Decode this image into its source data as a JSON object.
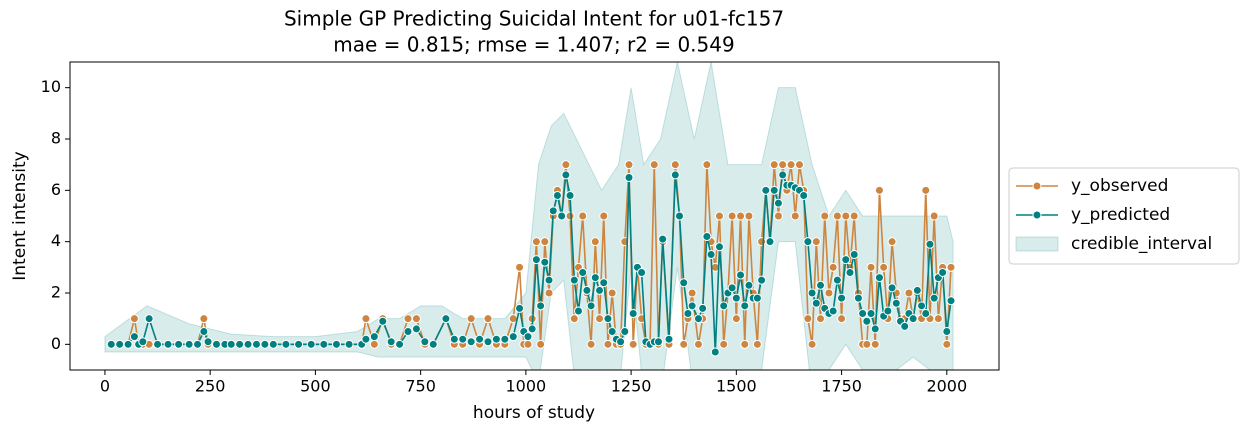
{
  "chart_data": {
    "type": "line",
    "title": "Simple GP Predicting Suicidal Intent for u01-fc157",
    "subtitle": "mae = 0.815; rmse = 1.407; r2 = 0.549",
    "xlabel": "hours of study",
    "ylabel": "Intent intensity",
    "xlim": [
      -83,
      2124
    ],
    "ylim": [
      -1,
      11
    ],
    "xticks": [
      0,
      250,
      500,
      750,
      1000,
      1250,
      1500,
      1750,
      2000
    ],
    "yticks": [
      0,
      2,
      4,
      6,
      8,
      10
    ],
    "legend": "right",
    "x": [
      15,
      35,
      55,
      70,
      80,
      90,
      105,
      125,
      150,
      175,
      200,
      220,
      235,
      245,
      265,
      285,
      300,
      320,
      340,
      360,
      380,
      400,
      430,
      460,
      490,
      520,
      550,
      580,
      610,
      620,
      640,
      660,
      680,
      700,
      720,
      740,
      760,
      780,
      810,
      830,
      850,
      870,
      890,
      910,
      930,
      950,
      970,
      985,
      995,
      1005,
      1015,
      1025,
      1035,
      1045,
      1055,
      1065,
      1075,
      1085,
      1095,
      1105,
      1115,
      1125,
      1135,
      1145,
      1155,
      1165,
      1175,
      1185,
      1195,
      1205,
      1215,
      1225,
      1235,
      1245,
      1255,
      1265,
      1275,
      1285,
      1295,
      1305,
      1315,
      1325,
      1340,
      1355,
      1365,
      1375,
      1385,
      1395,
      1410,
      1420,
      1430,
      1440,
      1450,
      1460,
      1470,
      1480,
      1490,
      1500,
      1510,
      1520,
      1530,
      1540,
      1550,
      1560,
      1570,
      1580,
      1590,
      1600,
      1610,
      1620,
      1630,
      1640,
      1650,
      1660,
      1670,
      1680,
      1690,
      1700,
      1710,
      1720,
      1730,
      1740,
      1750,
      1760,
      1770,
      1780,
      1790,
      1800,
      1810,
      1820,
      1830,
      1840,
      1850,
      1860,
      1870,
      1880,
      1890,
      1900,
      1910,
      1920,
      1930,
      1940,
      1950,
      1960,
      1970,
      1980,
      1990,
      2000,
      2010
    ],
    "series": [
      {
        "name": "y_observed",
        "color": "#cd853f",
        "values": [
          0,
          0,
          0,
          1,
          0,
          0,
          0,
          0,
          0,
          0,
          0,
          0,
          1,
          0,
          0,
          0,
          0,
          0,
          0,
          0,
          0,
          0,
          0,
          0,
          0,
          0,
          0,
          0,
          0,
          1,
          0,
          1,
          0,
          0,
          1,
          1,
          0,
          0,
          1,
          0,
          0,
          1,
          0,
          1,
          0,
          0,
          1,
          3,
          0,
          0,
          1,
          4,
          0,
          4,
          2,
          5,
          6,
          5,
          7,
          5,
          1,
          3,
          5,
          2,
          0,
          4,
          1,
          5,
          0,
          2,
          0,
          0,
          4,
          7,
          0,
          3,
          1,
          0,
          0,
          7,
          0,
          4,
          0,
          7,
          5,
          0,
          1,
          2,
          0,
          1,
          7,
          4,
          3,
          5,
          0,
          2,
          5,
          1,
          5,
          0,
          5,
          2,
          0,
          4,
          6,
          4,
          7,
          5,
          7,
          6,
          7,
          5,
          7,
          6,
          1,
          0,
          4,
          1,
          5,
          2,
          3,
          5,
          1,
          5,
          3,
          5,
          2,
          0,
          0,
          3,
          0,
          6,
          3,
          1,
          4,
          2,
          1,
          1,
          2,
          1,
          2,
          1,
          6,
          1,
          5,
          1,
          3,
          0,
          3
        ]
      },
      {
        "name": "y_predicted",
        "color": "#008080",
        "values": [
          0,
          0,
          0,
          0.3,
          0,
          0.1,
          1,
          0,
          0,
          0,
          0,
          0,
          0.5,
          0.1,
          0,
          0,
          0,
          0,
          0,
          0,
          0,
          0,
          0,
          0,
          0,
          0,
          0,
          0,
          0,
          0.2,
          0.3,
          0.9,
          0.1,
          0,
          0.5,
          0.6,
          0.1,
          0,
          1,
          0.2,
          0.2,
          0.1,
          0.2,
          0.1,
          0.2,
          0.2,
          0.3,
          1.4,
          0.5,
          0.3,
          0.6,
          3.3,
          1.5,
          3.2,
          2.5,
          5.2,
          5.8,
          5,
          6.6,
          5.8,
          2.5,
          1.3,
          2.8,
          2.1,
          1.5,
          2.6,
          2.1,
          2.4,
          1,
          0.5,
          0.2,
          0.1,
          0.5,
          6.5,
          1.2,
          3,
          2.8,
          0.1,
          0,
          0.1,
          0.1,
          4.1,
          0.2,
          6.6,
          5,
          2.4,
          1.2,
          1.5,
          1,
          1.4,
          4.2,
          3.5,
          -0.3,
          3.8,
          1.5,
          2,
          2.2,
          1.8,
          2.7,
          1.5,
          2.3,
          1.8,
          1.8,
          2.5,
          6,
          4,
          6,
          5.5,
          6.6,
          6.2,
          6.2,
          6.1,
          6,
          5.8,
          4,
          2,
          1.6,
          2.3,
          1.4,
          1.2,
          1.3,
          2.5,
          1.8,
          3.3,
          2.8,
          3.5,
          1.8,
          1.2,
          0.9,
          1.2,
          0.6,
          2.6,
          1.1,
          1.3,
          2.2,
          1.6,
          0.9,
          0.7,
          1.2,
          1,
          2.1,
          1.5,
          1.2,
          3.9,
          1.8,
          2.6,
          2.8,
          0.5,
          1.7
        ]
      }
    ],
    "interval": {
      "name": "credible_interval",
      "color": "#008080",
      "x": [
        0,
        100,
        200,
        300,
        400,
        500,
        600,
        650,
        700,
        750,
        800,
        850,
        900,
        950,
        1000,
        1030,
        1060,
        1090,
        1120,
        1150,
        1180,
        1220,
        1250,
        1280,
        1320,
        1360,
        1400,
        1440,
        1480,
        1520,
        1560,
        1600,
        1640,
        1680,
        1720,
        1760,
        1800,
        1840,
        1880,
        1920,
        1960,
        2000,
        2015
      ],
      "lower": [
        -0.3,
        -0.3,
        -0.3,
        -0.3,
        -0.3,
        -0.3,
        -0.3,
        -0.5,
        -0.5,
        -0.5,
        -0.5,
        -0.5,
        -0.5,
        -0.5,
        -0.5,
        -1.5,
        2,
        2.5,
        -2,
        -1.5,
        -1.5,
        -2,
        3,
        -2,
        -2,
        3,
        -2,
        -2,
        -1.5,
        -1.5,
        -1,
        4,
        4,
        -2,
        -1,
        0,
        -1,
        -1,
        -1,
        -0.5,
        -1,
        -1,
        -1
      ],
      "upper": [
        0.3,
        1.5,
        0.8,
        0.4,
        0.3,
        0.3,
        0.5,
        1,
        1,
        1.5,
        1.5,
        1,
        1,
        1,
        2,
        7,
        8.5,
        9,
        8,
        7,
        6,
        7,
        10,
        7,
        8,
        11,
        8,
        11,
        7,
        7,
        7,
        10,
        10,
        7,
        5,
        6,
        5,
        5,
        5,
        5,
        5,
        5,
        4
      ]
    }
  }
}
